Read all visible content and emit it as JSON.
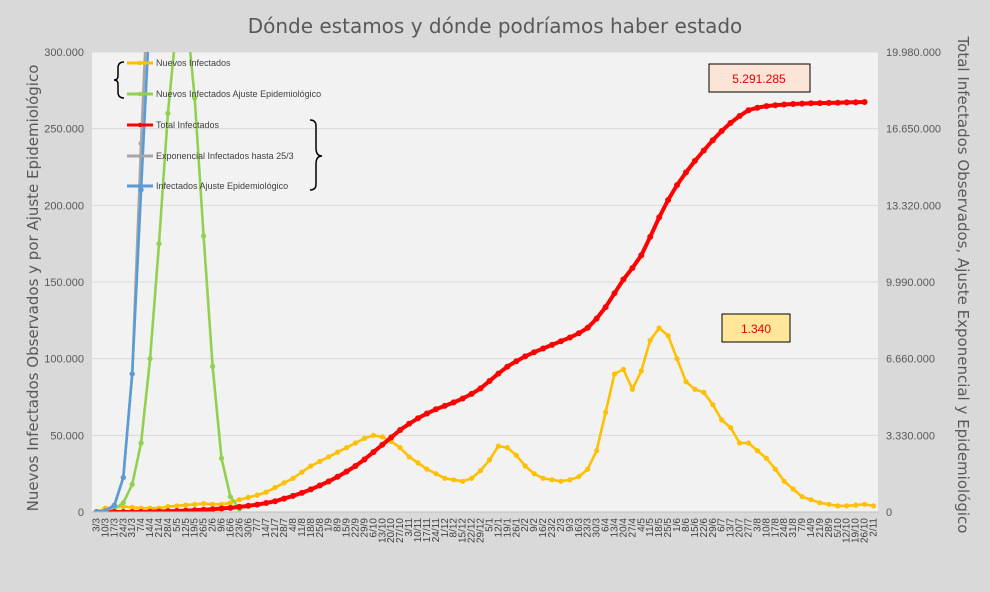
{
  "chart_data": {
    "type": "line",
    "title": "Dónde estamos y dónde podríamos haber estado",
    "ylabel_left": "Nuevos Infectados Observados y por Ajuste Epidemiológico",
    "ylabel_right": "Total Infectados Observados, Ajuste Exponencial y Epidemiológico",
    "ylim_left": [
      0,
      300000
    ],
    "ylim_right": [
      0,
      19980000
    ],
    "y_ticks_left": [
      "0",
      "50.000",
      "100.000",
      "150.000",
      "200.000",
      "250.000",
      "300.000"
    ],
    "y_ticks_right": [
      "0",
      "3.330.000",
      "6.660.000",
      "9.990.000",
      "13.320.000",
      "16.650.000",
      "19.980.000"
    ],
    "x_tick_labels": [
      "3/3",
      "10/3",
      "17/3",
      "24/3",
      "31/3",
      "7/4",
      "14/4",
      "21/4",
      "28/4",
      "5/5",
      "12/5",
      "19/5",
      "26/5",
      "2/6",
      "9/6",
      "16/6",
      "23/6",
      "30/6",
      "7/7",
      "14/7",
      "21/7",
      "28/7",
      "4/8",
      "11/8",
      "18/8",
      "25/8",
      "1/9",
      "8/9",
      "15/9",
      "22/9",
      "29/9",
      "6/10",
      "13/10",
      "20/10",
      "27/10",
      "3/11",
      "10/11",
      "17/11",
      "24/11",
      "1/12",
      "8/12",
      "15/12",
      "22/12",
      "29/12",
      "5/1",
      "12/1",
      "19/1",
      "26/1",
      "2/2",
      "9/2",
      "16/2",
      "23/2",
      "2/3",
      "9/3",
      "16/3",
      "23/3",
      "30/3",
      "6/4",
      "13/4",
      "20/4",
      "27/4",
      "4/5",
      "11/5",
      "18/5",
      "25/5",
      "1/6",
      "8/6",
      "15/6",
      "22/6",
      "29/6",
      "6/7",
      "13/7",
      "20/7",
      "27/7",
      "3/8",
      "10/8",
      "17/8",
      "24/8",
      "31/8",
      "7/9",
      "14/9",
      "21/9",
      "28/9",
      "5/10",
      "12/10",
      "19/10",
      "26/10",
      "2/11"
    ],
    "legend_placement": "top-left",
    "grid": true,
    "series_meta": [
      {
        "name": "Nuevos Infectados",
        "axis": "left",
        "color": "#ffc000"
      },
      {
        "name": "Nuevos Infectados Ajuste Epidemiológico",
        "axis": "left",
        "color": "#92d050"
      },
      {
        "name": "Total Infectados",
        "axis": "right",
        "color": "#ff0000"
      },
      {
        "name": "Exponencial Infectados hasta 25/3",
        "axis": "right",
        "color": "#a6a6a6"
      },
      {
        "name": "Infectados Ajuste Epidemiológico",
        "axis": "right",
        "color": "#5b9bd5"
      }
    ],
    "series_weekly": {
      "Nuevos Infectados": [
        0,
        2500,
        3000,
        3500,
        3000,
        2500,
        2500,
        2500,
        3500,
        4000,
        4500,
        5000,
        5500,
        5000,
        5000,
        6000,
        8000,
        9500,
        11000,
        13000,
        16000,
        19000,
        22000,
        26000,
        30000,
        33000,
        36000,
        39000,
        42000,
        45000,
        48000,
        50000,
        49000,
        46000,
        42000,
        36000,
        32000,
        28000,
        25000,
        22000,
        21000,
        20000,
        22000,
        27000,
        34000,
        43000,
        42000,
        37000,
        30000,
        25000,
        22000,
        21000,
        20000,
        21000,
        23000,
        28000,
        40000,
        65000,
        90000,
        93000,
        80000,
        92000,
        112000,
        120000,
        115000,
        100000,
        85000,
        80000,
        78000,
        70000,
        60000,
        55000,
        45000,
        45000,
        40000,
        35000,
        28000,
        20000,
        15000,
        10000,
        8000,
        6000,
        5000,
        4000,
        4000,
        4500,
        5000,
        4000
      ],
      "Nuevos Infectados Ajuste Epidemiológico": [
        0,
        500,
        2000,
        6000,
        18000,
        45000,
        100000,
        175000,
        260000,
        320000,
        330000,
        270000,
        180000,
        95000,
        35000,
        10000,
        2000
      ],
      "Total Infectados": [
        0,
        0,
        0,
        0,
        0,
        5000,
        10000,
        20000,
        30000,
        45000,
        60000,
        80000,
        100000,
        120000,
        150000,
        180000,
        220000,
        270000,
        320000,
        390000,
        470000,
        580000,
        700000,
        830000,
        980000,
        1150000,
        1330000,
        1530000,
        1760000,
        2000000,
        2280000,
        2600000,
        2920000,
        3240000,
        3560000,
        3830000,
        4070000,
        4280000,
        4460000,
        4610000,
        4760000,
        4930000,
        5130000,
        5370000,
        5690000,
        6010000,
        6310000,
        6550000,
        6760000,
        6940000,
        7100000,
        7260000,
        7420000,
        7580000,
        7760000,
        8000000,
        8400000,
        8900000,
        9500000,
        10100000,
        10600000,
        11150000,
        11950000,
        12800000,
        13550000,
        14200000,
        14750000,
        15250000,
        15700000,
        16150000,
        16550000,
        16900000,
        17200000,
        17450000,
        17560000,
        17630000,
        17670000,
        17700000,
        17720000,
        17740000,
        17750000,
        17760000,
        17770000,
        17780000,
        17790000,
        17800000,
        17810000
      ],
      "Infectados Ajuste Epidemiológico": [
        0,
        50000,
        300000,
        1500000,
        6000000,
        14000000,
        22000000
      ],
      "Exponencial Infectados hasta 25/3": [
        0,
        30000,
        250000,
        1500000,
        6000000,
        16000000,
        25000000
      ]
    }
  },
  "legend": {
    "items": [
      {
        "label": "Nuevos Infectados",
        "color": "#ffc000"
      },
      {
        "label": "Nuevos Infectados Ajuste Epidemiológico",
        "color": "#92d050"
      },
      {
        "label": "Total Infectados",
        "color": "#ff0000"
      },
      {
        "label": "Exponencial Infectados hasta 25/3",
        "color": "#a6a6a6"
      },
      {
        "label": "Infectados Ajuste Epidemiológico",
        "color": "#5b9bd5"
      }
    ]
  },
  "callouts": {
    "total": "5.291.285",
    "daily": "1.340"
  }
}
